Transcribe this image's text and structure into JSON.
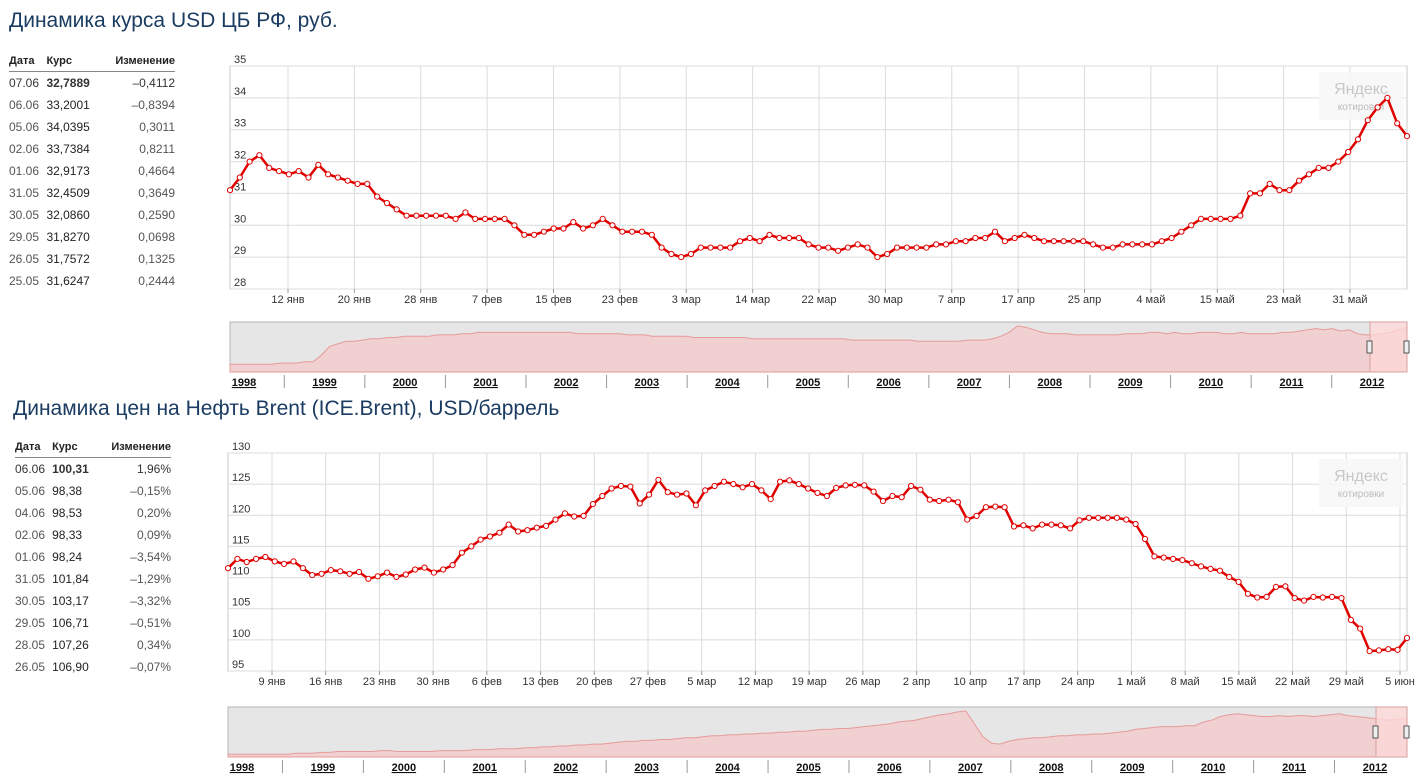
{
  "usd": {
    "title": "Динамика курса USD ЦБ РФ, руб.",
    "table": {
      "headers": [
        "Дата",
        "Курс",
        "Изменение"
      ],
      "rows": [
        [
          "07.06",
          "32,7889",
          "–0,4112"
        ],
        [
          "06.06",
          "33,2001",
          "–0,8394"
        ],
        [
          "05.06",
          "34,0395",
          "0,3011"
        ],
        [
          "02.06",
          "33,7384",
          "0,8211"
        ],
        [
          "01.06",
          "32,9173",
          "0,4664"
        ],
        [
          "31.05",
          "32,4509",
          "0,3649"
        ],
        [
          "30.05",
          "32,0860",
          "0,2590"
        ],
        [
          "29.05",
          "31,8270",
          "0,0698"
        ],
        [
          "26.05",
          "31,7572",
          "0,1325"
        ],
        [
          "25.05",
          "31,6247",
          "0,2444"
        ]
      ]
    },
    "watermark": {
      "brand": "Яндекс",
      "sub": "котировки"
    },
    "chart_data": {
      "type": "line",
      "ylim": [
        28,
        35
      ],
      "yticks": [
        "28",
        "29",
        "30",
        "31",
        "32",
        "33",
        "34",
        "35"
      ],
      "xticks": [
        "12 янв",
        "20 янв",
        "28 янв",
        "7 фев",
        "15 фев",
        "23 фев",
        "3 мар",
        "14 мар",
        "22 мар",
        "30 мар",
        "7 апр",
        "17 апр",
        "25 апр",
        "4 май",
        "15 май",
        "23 май",
        "31 май"
      ],
      "color": "#e00000",
      "values": [
        31.1,
        31.5,
        32.0,
        32.2,
        31.8,
        31.7,
        31.6,
        31.7,
        31.5,
        31.9,
        31.6,
        31.5,
        31.4,
        31.3,
        31.3,
        30.9,
        30.7,
        30.5,
        30.3,
        30.3,
        30.3,
        30.3,
        30.3,
        30.2,
        30.4,
        30.2,
        30.2,
        30.2,
        30.2,
        30.0,
        29.7,
        29.7,
        29.8,
        29.9,
        29.9,
        30.1,
        29.9,
        30.0,
        30.2,
        30.0,
        29.8,
        29.8,
        29.8,
        29.7,
        29.3,
        29.1,
        29.0,
        29.1,
        29.3,
        29.3,
        29.3,
        29.3,
        29.5,
        29.6,
        29.5,
        29.7,
        29.6,
        29.6,
        29.6,
        29.4,
        29.3,
        29.3,
        29.2,
        29.3,
        29.4,
        29.3,
        29.0,
        29.1,
        29.3,
        29.3,
        29.3,
        29.3,
        29.4,
        29.4,
        29.5,
        29.5,
        29.6,
        29.6,
        29.8,
        29.5,
        29.6,
        29.7,
        29.6,
        29.5,
        29.5,
        29.5,
        29.5,
        29.5,
        29.4,
        29.3,
        29.3,
        29.4,
        29.4,
        29.4,
        29.4,
        29.5,
        29.6,
        29.8,
        30.0,
        30.2,
        30.2,
        30.2,
        30.2,
        30.3,
        31.0,
        31.0,
        31.3,
        31.1,
        31.1,
        31.4,
        31.6,
        31.8,
        31.8,
        32.0,
        32.3,
        32.7,
        33.3,
        33.7,
        34.0,
        33.2,
        32.8
      ]
    },
    "navigator": {
      "years": [
        "1998",
        "1999",
        "2000",
        "2001",
        "2002",
        "2003",
        "2004",
        "2005",
        "2006",
        "2007",
        "2008",
        "2009",
        "2010",
        "2011",
        "2012"
      ],
      "values": [
        6,
        6,
        6,
        6,
        6,
        6,
        7,
        7,
        7,
        8,
        8,
        13,
        20,
        22,
        24,
        24,
        25,
        26,
        26,
        27,
        27,
        28,
        28,
        28,
        28,
        29,
        29,
        29,
        30,
        30,
        31,
        31,
        31,
        31,
        31,
        31,
        31,
        31,
        31,
        31,
        31,
        31,
        30,
        30,
        30,
        30,
        30,
        30,
        29,
        29,
        29,
        28,
        28,
        28,
        28,
        28,
        27,
        27,
        27,
        27,
        27,
        27,
        27,
        26,
        26,
        26,
        26,
        26,
        26,
        26,
        26,
        26,
        26,
        26,
        26,
        25,
        25,
        25,
        25,
        25,
        25,
        25,
        25,
        24,
        24,
        24,
        24,
        24,
        24,
        25,
        25,
        25,
        26,
        28,
        31,
        36,
        35,
        33,
        31,
        30,
        30,
        30,
        29,
        29,
        29,
        29,
        29,
        29,
        30,
        30,
        30,
        31,
        31,
        30,
        31,
        30,
        30,
        31,
        31,
        31,
        30,
        30,
        31,
        30,
        30,
        30,
        30,
        31,
        31,
        32,
        33,
        34,
        33,
        34,
        32,
        33,
        30,
        29,
        29,
        30,
        31,
        33,
        35
      ]
    }
  },
  "brent": {
    "title": "Динамика цен на Нефть Brent (ICE.Brent), USD/баррель",
    "table": {
      "headers": [
        "Дата",
        "Курс",
        "Изменение"
      ],
      "rows": [
        [
          "06.06",
          "100,31",
          "1,96%"
        ],
        [
          "05.06",
          "98,38",
          "–0,15%"
        ],
        [
          "04.06",
          "98,53",
          "0,20%"
        ],
        [
          "02.06",
          "98,33",
          "0,09%"
        ],
        [
          "01.06",
          "98,24",
          "–3,54%"
        ],
        [
          "31.05",
          "101,84",
          "–1,29%"
        ],
        [
          "30.05",
          "103,17",
          "–3,32%"
        ],
        [
          "29.05",
          "106,71",
          "–0,51%"
        ],
        [
          "28.05",
          "107,26",
          "0,34%"
        ],
        [
          "26.05",
          "106,90",
          "–0,07%"
        ]
      ]
    },
    "watermark": {
      "brand": "Яндекс",
      "sub": "котировки"
    },
    "chart_data": {
      "type": "line",
      "ylim": [
        95,
        130
      ],
      "yticks": [
        "95",
        "100",
        "105",
        "110",
        "115",
        "120",
        "125",
        "130"
      ],
      "xticks": [
        "9 янв",
        "16 янв",
        "23 янв",
        "30 янв",
        "6 фев",
        "13 фев",
        "20 фев",
        "27 фев",
        "5 мар",
        "12 мар",
        "19 мар",
        "26 мар",
        "2 апр",
        "10 апр",
        "17 апр",
        "24 апр",
        "1 май",
        "8 май",
        "15 май",
        "22 май",
        "29 май",
        "5 июн"
      ],
      "color": "#e00000",
      "values": [
        111.5,
        113.0,
        112.5,
        113.0,
        113.3,
        112.6,
        112.2,
        112.6,
        111.5,
        110.4,
        110.6,
        111.2,
        111.0,
        110.6,
        110.9,
        109.8,
        110.2,
        110.8,
        110.1,
        110.5,
        111.3,
        111.6,
        110.8,
        111.3,
        112.0,
        114.0,
        115.0,
        116.1,
        116.6,
        117.2,
        118.5,
        117.4,
        117.6,
        118.0,
        118.3,
        119.3,
        120.3,
        119.8,
        119.9,
        121.8,
        123.1,
        124.3,
        124.7,
        124.6,
        121.9,
        123.3,
        125.7,
        123.7,
        123.3,
        123.5,
        121.6,
        124.0,
        124.7,
        125.4,
        125.0,
        124.5,
        125.0,
        124.0,
        122.6,
        125.4,
        125.6,
        125.0,
        124.3,
        123.6,
        123.1,
        124.4,
        124.8,
        124.9,
        124.8,
        123.8,
        122.3,
        123.1,
        122.9,
        124.7,
        124.1,
        122.5,
        122.3,
        122.5,
        122.1,
        119.3,
        119.9,
        121.3,
        121.4,
        121.3,
        118.2,
        118.4,
        117.9,
        118.5,
        118.5,
        118.4,
        117.9,
        119.2,
        119.6,
        119.6,
        119.6,
        119.6,
        119.3,
        118.6,
        116.2,
        113.4,
        113.2,
        113.0,
        112.8,
        112.3,
        111.8,
        111.4,
        111.1,
        110.1,
        109.3,
        107.4,
        106.8,
        106.9,
        108.5,
        108.6,
        106.7,
        106.3,
        106.9,
        106.8,
        106.9,
        106.7,
        103.2,
        101.8,
        98.2,
        98.3,
        98.5,
        98.4,
        100.3
      ]
    },
    "navigator": {
      "years": [
        "1998",
        "1999",
        "2000",
        "2001",
        "2002",
        "2003",
        "2004",
        "2005",
        "2006",
        "2007",
        "2008",
        "2009",
        "2010",
        "2011",
        "2012"
      ],
      "values": [
        3,
        3,
        3,
        3,
        3,
        3,
        3,
        3,
        4,
        4,
        4,
        5,
        5,
        6,
        6,
        6,
        6,
        6,
        7,
        7,
        6,
        6,
        6,
        6,
        6,
        7,
        7,
        7,
        7,
        8,
        8,
        8,
        9,
        9,
        9,
        10,
        10,
        11,
        11,
        12,
        12,
        13,
        13,
        14,
        14,
        15,
        16,
        17,
        17,
        18,
        18,
        19,
        19,
        20,
        21,
        21,
        22,
        23,
        23,
        24,
        24,
        25,
        25,
        26,
        26,
        27,
        27,
        28,
        28,
        29,
        30,
        30,
        31,
        31,
        32,
        33,
        34,
        35,
        36,
        38,
        39,
        40,
        42,
        44,
        46,
        47,
        49,
        50,
        36,
        22,
        15,
        14,
        17,
        19,
        20,
        21,
        21,
        22,
        23,
        23,
        24,
        24,
        25,
        25,
        26,
        27,
        28,
        30,
        31,
        32,
        33,
        33,
        33,
        34,
        34,
        38,
        40,
        44,
        46,
        47,
        46,
        45,
        44,
        44,
        45,
        44,
        45,
        45,
        44,
        45,
        46,
        47,
        45,
        44,
        43,
        42,
        41,
        40,
        41,
        42
      ]
    }
  }
}
